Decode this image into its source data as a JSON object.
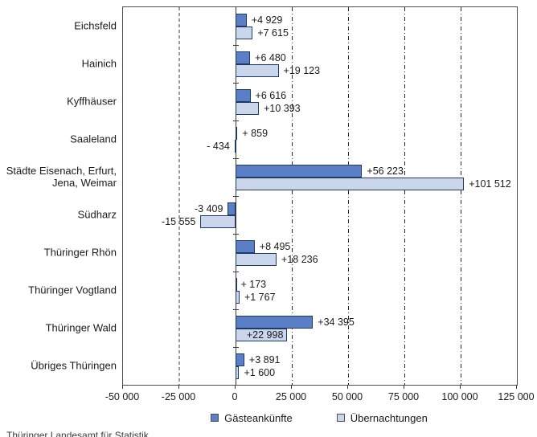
{
  "chart_data": {
    "type": "bar",
    "orientation": "horizontal",
    "title": "",
    "xlabel": "",
    "ylabel": "",
    "xlim": [
      -50000,
      125000
    ],
    "grid": true,
    "gridlines": [
      -25000,
      25000,
      50000,
      75000,
      100000
    ],
    "x_ticks": [
      {
        "value": -50000,
        "label": "-50 000"
      },
      {
        "value": -25000,
        "label": "-25 000"
      },
      {
        "value": 0,
        "label": "0"
      },
      {
        "value": 25000,
        "label": "25 000"
      },
      {
        "value": 50000,
        "label": "50 000"
      },
      {
        "value": 75000,
        "label": "75 000"
      },
      {
        "value": 100000,
        "label": "100 000"
      },
      {
        "value": 125000,
        "label": "125 000"
      }
    ],
    "categories": [
      "Eichsfeld",
      "Hainich",
      "Kyffhäuser",
      "Saaleland",
      "Städte Eisenach, Erfurt, Jena, Weimar",
      "Südharz",
      "Thüringer Rhön",
      "Thüringer Vogtland",
      "Thüringer Wald",
      "Übriges Thüringen"
    ],
    "series": [
      {
        "name": "Gästeankünfte",
        "color": "#5b7fc7",
        "border_color": "#1f3864",
        "values": [
          4929,
          6480,
          6616,
          859,
          56223,
          -3409,
          8495,
          173,
          34395,
          3891
        ],
        "labels": [
          "+4 929",
          "+6 480",
          "+6 616",
          "+ 859",
          "+56 223",
          "-3 409",
          "+8 495",
          "+ 173",
          "+34 395",
          "+3 891"
        ],
        "label_inside": [
          false,
          false,
          false,
          false,
          false,
          false,
          false,
          false,
          false,
          false
        ]
      },
      {
        "name": "Übernachtungen",
        "color": "#c9d6ec",
        "border_color": "#1f3864",
        "values": [
          7615,
          19123,
          10393,
          -434,
          101512,
          -15555,
          18236,
          1767,
          22998,
          1600
        ],
        "labels": [
          "+7 615",
          "+19 123",
          "+10 393",
          "- 434",
          "+101 512",
          "-15 555",
          "+18 236",
          "+1 767",
          "+22 998",
          "+1 600"
        ],
        "label_inside": [
          false,
          false,
          false,
          false,
          false,
          false,
          false,
          false,
          true,
          false
        ]
      }
    ],
    "legend": {
      "position": "bottom",
      "entries": [
        "Gästeankünfte",
        "Übernachtungen"
      ]
    }
  },
  "footer": {
    "source": "Thüringer Landesamt für Statistik"
  }
}
